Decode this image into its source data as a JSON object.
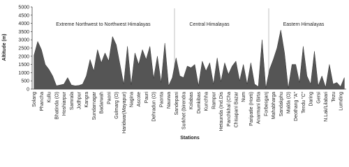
{
  "chart_data": {
    "type": "area",
    "y_label": "Altitude (m)",
    "x_label": "Stations",
    "annotations": [
      "Extreme Northwest to Northwest Himalayas",
      "Central Himalayas",
      "Eastern Himalayas"
    ],
    "color": "#555555",
    "ylim": [
      0,
      5000
    ],
    "yticks": [
      0,
      500,
      1000,
      1500,
      2000,
      2500,
      3000,
      3500,
      4000,
      4500,
      5000
    ],
    "categories": [
      "Solang",
      null,
      "Phancha",
      null,
      "Kullu",
      null,
      "Bhatinda (O)",
      null,
      "Hoshiarpur",
      null,
      "Samrala",
      null,
      "Jodhpur",
      null,
      "Kangra",
      null,
      "Sundarnagar",
      null,
      "Badarwah",
      null,
      "Paoni",
      null,
      "Gulmarg (O)",
      null,
      "Haridwar(Mayapur)",
      null,
      "Nagina",
      null,
      "Ascote",
      null,
      "Pauri",
      null,
      "Dehradun (O)",
      null,
      "Paonta",
      null,
      "Naurwa",
      null,
      "Sandepani",
      null,
      "Surkhet (birendra",
      null,
      "Kolabas",
      null,
      "Dumkibas",
      null,
      "Kunchha",
      null,
      "Rampur",
      null,
      "Hetaunda (Ind.Dis",
      null,
      "Panchkhal (Cha",
      null,
      "Chisapani Bazar",
      null,
      "Num",
      null,
      "Paripatle (Horti)",
      null,
      "Anarmani Birta",
      null,
      "Forbesganj",
      null,
      "Mahabharga",
      null,
      "Sandakphu",
      null,
      "Malda (O)",
      null,
      "Deothang \"A\"",
      null,
      "Tendu \"C\"",
      null,
      "Daring",
      null,
      "Gersi",
      null,
      "N.Lak/Lilabari",
      null,
      "Tezu",
      null,
      "Lumding",
      null
    ],
    "values": [
      2050,
      2900,
      2400,
      1500,
      1200,
      800,
      200,
      250,
      300,
      700,
      250,
      200,
      220,
      300,
      800,
      1800,
      1100,
      2400,
      1600,
      2200,
      1700,
      3200,
      2700,
      1500,
      300,
      2600,
      250,
      2200,
      1500,
      2400,
      1800,
      2600,
      650,
      2000,
      400,
      2800,
      200,
      700,
      1900,
      800,
      700,
      1400,
      1300,
      1500,
      200,
      1700,
      1100,
      1600,
      300,
      1900,
      450,
      1600,
      900,
      1400,
      1700,
      500,
      1500,
      300,
      1600,
      300,
      150,
      3000,
      60,
      1200,
      1800,
      2500,
      3600,
      2200,
      40,
      1500,
      1500,
      400,
      2600,
      800,
      300,
      2300,
      200,
      800,
      100,
      1500,
      300,
      400,
      150,
      700
    ]
  }
}
